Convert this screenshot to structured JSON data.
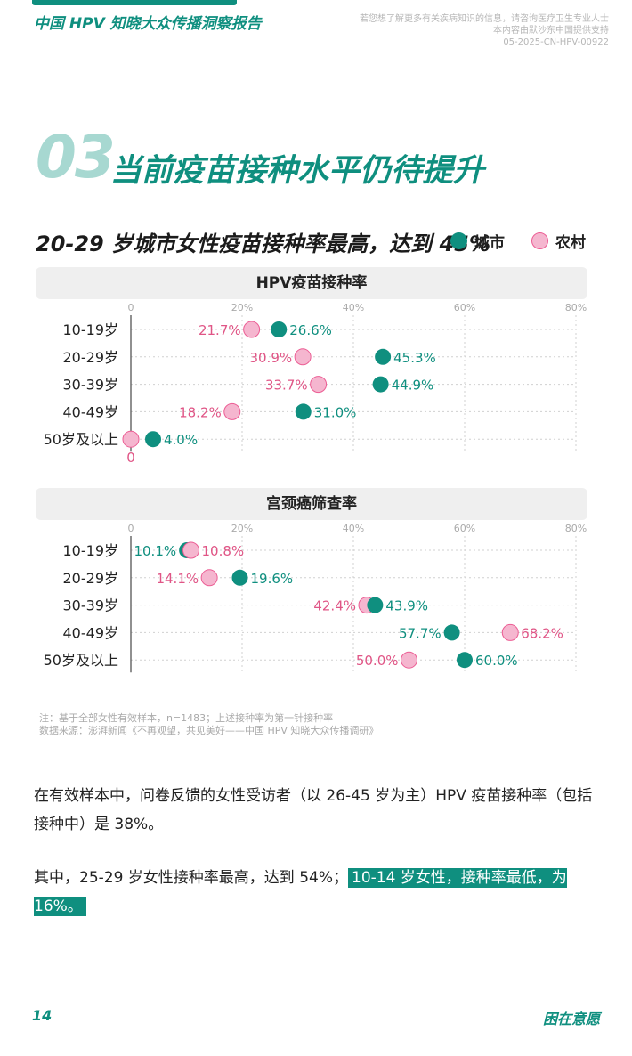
{
  "header": {
    "title": "中国 HPV 知晓大众传播洞察报告",
    "notes": [
      "若您想了解更多有关疾病知识的信息，请咨询医疗卫生专业人士",
      "本内容由默沙东中国提供支持",
      "05-2025-CN-HPV-00922"
    ]
  },
  "section": {
    "number": "03",
    "title": "当前疫苗接种水平仍待提升"
  },
  "subtitle": "20-29 岁城市女性疫苗接种率最高，达到 45%",
  "legend": {
    "urban": "城市",
    "rural": "农村"
  },
  "colors": {
    "urban": "#0f8f7f",
    "urban_label": "#0f8f7f",
    "rural_fill": "#f5b6cf",
    "rural_stroke": "#ec5d94",
    "rural_label": "#e05586",
    "grid": "#d0d0d0"
  },
  "chart_data": [
    {
      "type": "scatter",
      "title": "HPV疫苗接种率",
      "categories": [
        "10-19岁",
        "20-29岁",
        "30-39岁",
        "40-49岁",
        "50岁及以上"
      ],
      "x_ticks": [
        "0",
        "20%",
        "40%",
        "60%",
        "80%"
      ],
      "xlim": [
        0,
        80
      ],
      "grid": true,
      "series": [
        {
          "name": "城市",
          "values": [
            26.6,
            45.3,
            44.9,
            31.0,
            4.0
          ],
          "labels": [
            "26.6%",
            "45.3%",
            "44.9%",
            "31.0%",
            "4.0%"
          ]
        },
        {
          "name": "农村",
          "values": [
            21.7,
            30.9,
            33.7,
            18.2,
            0
          ],
          "labels": [
            "21.7%",
            "30.9%",
            "33.7%",
            "18.2%",
            "0"
          ]
        }
      ]
    },
    {
      "type": "scatter",
      "title": "宫颈癌筛查率",
      "categories": [
        "10-19岁",
        "20-29岁",
        "30-39岁",
        "40-49岁",
        "50岁及以上"
      ],
      "x_ticks": [
        "0",
        "20%",
        "40%",
        "60%",
        "80%"
      ],
      "xlim": [
        0,
        80
      ],
      "grid": true,
      "series": [
        {
          "name": "城市",
          "values": [
            10.1,
            19.6,
            43.9,
            57.7,
            60.0
          ],
          "labels": [
            "10.1%",
            "19.6%",
            "43.9%",
            "57.7%",
            "60.0%"
          ]
        },
        {
          "name": "农村",
          "values": [
            10.8,
            14.1,
            42.4,
            68.2,
            50.0
          ],
          "labels": [
            "10.8%",
            "14.1%",
            "42.4%",
            "68.2%",
            "50.0%"
          ]
        }
      ]
    }
  ],
  "footnote": {
    "line1": "注：基于全部女性有效样本，n=1483；上述接种率为第一针接种率",
    "line2": "数据来源：澎湃新闻《不再观望，共见美好——中国 HPV 知晓大众传播调研》"
  },
  "paragraph1": "在有效样本中，问卷反馈的女性受访者（以 26-45 岁为主）HPV 疫苗接种率（包括接种中）是 38%。",
  "paragraph2_prefix": "其中，25-29 岁女性接种率最高，达到 54%；",
  "paragraph2_highlight": "10-14 岁女性，接种率最低，为 16%。",
  "footer": {
    "page_number": "14",
    "brand": "困在意愿"
  }
}
